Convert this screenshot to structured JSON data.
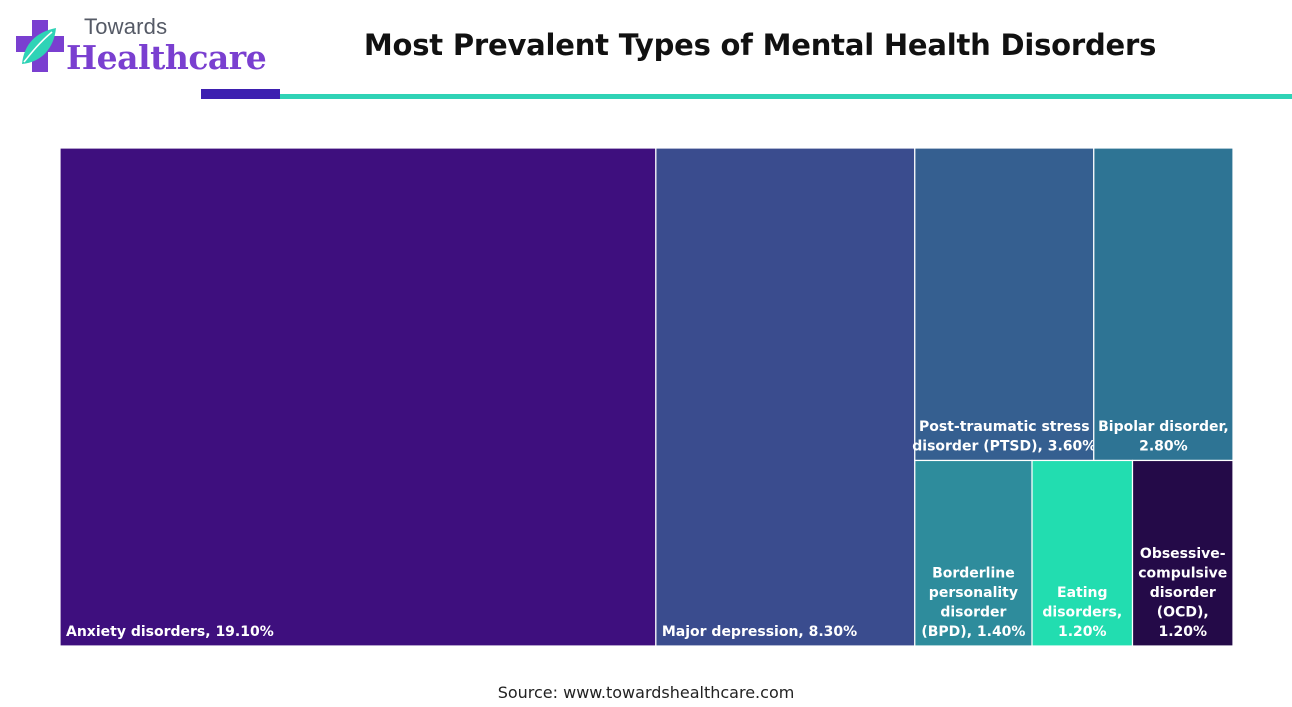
{
  "logo": {
    "top_text": "Towards",
    "main_text": "Healthcare",
    "icon": "cross-leaf-icon",
    "colors": {
      "cross": "#7a3fd0",
      "leaf": "#2fd3b6"
    }
  },
  "title": "Most Prevalent Types of Mental Health Disorders",
  "source": "Source: www.towardshealthcare.com",
  "colors": {
    "rule_dark": "#3d1fb0",
    "rule_teal": "#2fd3b6"
  },
  "chart_data": {
    "type": "treemap",
    "title": "Most Prevalent Types of Mental Health Disorders",
    "unit": "%",
    "items": [
      {
        "name": "Anxiety disorders",
        "value": 19.1,
        "label": "Anxiety disorders, 19.10%",
        "color": "#3e0f7e"
      },
      {
        "name": "Major depression",
        "value": 8.3,
        "label": "Major depression, 8.30%",
        "color": "#3a4c8e"
      },
      {
        "name": "Post-traumatic stress disorder (PTSD)",
        "value": 3.6,
        "label": "Post-traumatic stress disorder (PTSD), 3.60%",
        "color": "#355f90"
      },
      {
        "name": "Bipolar disorder",
        "value": 2.8,
        "label": "Bipolar disorder, 2.80%",
        "color": "#2e7494"
      },
      {
        "name": "Borderline personality disorder (BPD)",
        "value": 1.4,
        "label": "Borderline personality disorder (BPD), 1.40%",
        "color": "#2e8c9c"
      },
      {
        "name": "Eating disorders",
        "value": 1.2,
        "label": "Eating disorders, 1.20%",
        "color": "#22ddb0"
      },
      {
        "name": "Obsessive-compulsive disorder (OCD)",
        "value": 1.2,
        "label": "Obsessive-compulsive disorder (OCD), 1.20%",
        "color": "#240a48"
      }
    ]
  }
}
